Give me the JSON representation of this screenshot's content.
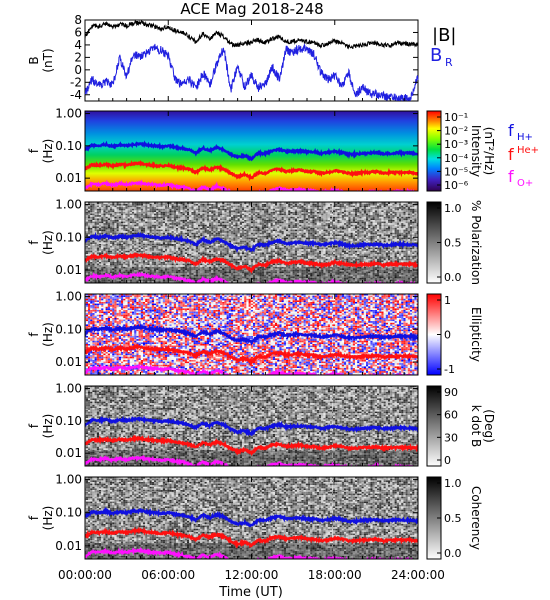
{
  "title": "ACE Mag 2018-248",
  "xlabel": "Time (UT)",
  "x_ticks": [
    "00:00:00",
    "06:00:00",
    "12:00:00",
    "18:00:00",
    "24:00:00"
  ],
  "x_range_hours": [
    0,
    24
  ],
  "colors": {
    "btot": "#000000",
    "br": "#2020e0",
    "f_h": "#1010e0",
    "f_he": "#ff1010",
    "f_o": "#ff10ff"
  },
  "chart_data": [
    {
      "type": "line",
      "panel": "B",
      "ylabel": "B",
      "yunit": "(nT)",
      "ylim": [
        -5,
        8
      ],
      "y_ticks": [
        "8",
        "6",
        "4",
        "2",
        "0",
        "-2",
        "-4"
      ],
      "y_tick_values": [
        8,
        6,
        4,
        2,
        0,
        -2,
        -4
      ],
      "legend": [
        "|B|",
        "B"
      ],
      "legend_sub": "R",
      "series": [
        {
          "key": "btot",
          "x": [
            0,
            0.5,
            1,
            1.5,
            2,
            2.5,
            3,
            3.5,
            4,
            4.5,
            5,
            5.5,
            6,
            6.5,
            7,
            7.5,
            8,
            8.5,
            9,
            9.5,
            10,
            10.5,
            11,
            11.5,
            12,
            12.5,
            13,
            13.5,
            14,
            14.5,
            15,
            15.5,
            16,
            16.5,
            17,
            17.5,
            18,
            18.5,
            19,
            19.5,
            20,
            20.5,
            21,
            21.5,
            22,
            22.5,
            23,
            23.5,
            24
          ],
          "y": [
            5.2,
            7.2,
            7.0,
            7.4,
            6.8,
            7.3,
            7.1,
            7.5,
            7.6,
            7.2,
            7.0,
            6.6,
            6.9,
            6.3,
            6.0,
            5.4,
            4.5,
            5.8,
            5.0,
            6.0,
            5.3,
            4.1,
            3.9,
            4.3,
            4.5,
            4.8,
            4.4,
            5.0,
            5.3,
            4.5,
            4.6,
            4.8,
            4.4,
            4.5,
            3.9,
            4.2,
            4.6,
            4.3,
            3.7,
            3.8,
            4.0,
            4.2,
            4.3,
            3.9,
            4.0,
            4.3,
            4.2,
            4.1,
            4.0
          ]
        },
        {
          "key": "br",
          "x": [
            0,
            0.5,
            1,
            1.5,
            2,
            2.5,
            3,
            3.5,
            4,
            4.5,
            5,
            5.5,
            6,
            6.5,
            7,
            7.5,
            8,
            8.5,
            9,
            9.5,
            10,
            10.5,
            11,
            11.5,
            12,
            12.5,
            13,
            13.5,
            14,
            14.5,
            15,
            15.5,
            16,
            16.5,
            17,
            17.5,
            18,
            18.5,
            19,
            19.5,
            20,
            20.5,
            21,
            21.5,
            22,
            22.5,
            23,
            23.5,
            24
          ],
          "y": [
            -4.0,
            -1.5,
            -2.6,
            -1.8,
            -2.5,
            2.0,
            -1.0,
            2.5,
            2.0,
            2.9,
            3.5,
            3.1,
            2.3,
            -1.5,
            -2.5,
            -1.5,
            -3.0,
            -0.5,
            -2.5,
            1.0,
            3.5,
            -3.2,
            0.5,
            -2.8,
            -1.0,
            -2.9,
            -2.2,
            0.5,
            -1.5,
            3.2,
            2.8,
            3.5,
            3.3,
            2.5,
            -0.5,
            -1.5,
            -1.0,
            -2.5,
            -0.5,
            -4.0,
            -2.8,
            -3.8,
            -3.9,
            -4.2,
            -4.4,
            -4.5,
            -4.6,
            -4.5,
            -1.0
          ]
        }
      ]
    },
    {
      "type": "heatmap",
      "panel": "intensity",
      "ylabel": "f",
      "yunit": "(Hz)",
      "y_ticks": [
        "1.00",
        "0.10",
        "0.01"
      ],
      "y_tick_values": [
        1,
        0.1,
        0.01
      ],
      "ylim": [
        0.004,
        1.2
      ],
      "colorbar_label": "Intensity",
      "colorbar_unit": "(nT²/Hz)",
      "colorbar_ticks": [
        "10⁻¹",
        "10⁻²",
        "10⁻³",
        "10⁻⁴",
        "10⁻⁵",
        "10⁻⁶"
      ],
      "colorbar_range": [
        -6.3,
        -0.7
      ],
      "legend": [
        "f",
        "f",
        "f"
      ],
      "legend_sub": [
        "H+",
        "He+",
        "O+"
      ]
    },
    {
      "type": "heatmap",
      "panel": "polarization",
      "ylabel": "f",
      "yunit": "(Hz)",
      "y_ticks": [
        "1.00",
        "0.10",
        "0.01"
      ],
      "y_tick_values": [
        1,
        0.1,
        0.01
      ],
      "colorbar_label": "% Polarization",
      "colorbar_ticks": [
        "1.0",
        "0.5",
        "0.0"
      ],
      "colorbar_range": [
        0,
        1
      ]
    },
    {
      "type": "heatmap",
      "panel": "ellipticity",
      "ylabel": "f",
      "yunit": "(Hz)",
      "y_ticks": [
        "1.00",
        "0.10",
        "0.01"
      ],
      "y_tick_values": [
        1,
        0.1,
        0.01
      ],
      "colorbar_label": "Ellipticity",
      "colorbar_ticks": [
        "1",
        "0",
        "-1"
      ],
      "colorbar_range": [
        -1,
        1
      ]
    },
    {
      "type": "heatmap",
      "panel": "kdotb",
      "ylabel": "f",
      "yunit": "(Hz)",
      "y_ticks": [
        "1.00",
        "0.10",
        "0.01"
      ],
      "y_tick_values": [
        1,
        0.1,
        0.01
      ],
      "colorbar_label": "k dot B",
      "colorbar_unit": "(Deg)",
      "colorbar_ticks": [
        "90",
        "60",
        "30",
        "0"
      ],
      "colorbar_range": [
        0,
        90
      ]
    },
    {
      "type": "heatmap",
      "panel": "coherency",
      "ylabel": "f",
      "yunit": "(Hz)",
      "y_ticks": [
        "1.00",
        "0.10",
        "0.01"
      ],
      "y_tick_values": [
        1,
        0.1,
        0.01
      ],
      "colorbar_label": "Coherency",
      "colorbar_ticks": [
        "1.0",
        "0.5",
        "0.0"
      ],
      "colorbar_range": [
        0,
        1
      ]
    }
  ],
  "gyrofrequency_lines_hz": {
    "x": [
      0,
      0.5,
      1,
      1.5,
      2,
      2.5,
      3,
      3.5,
      4,
      4.5,
      5,
      5.5,
      6,
      6.5,
      7,
      7.5,
      8,
      8.5,
      9,
      9.5,
      10,
      10.5,
      11,
      11.5,
      12,
      12.5,
      13,
      13.5,
      14,
      14.5,
      15,
      15.5,
      16,
      16.5,
      17,
      17.5,
      18,
      18.5,
      19,
      19.5,
      20,
      20.5,
      21,
      21.5,
      22,
      22.5,
      23,
      23.5,
      24
    ],
    "f_h": [
      0.075,
      0.105,
      0.1,
      0.11,
      0.095,
      0.108,
      0.1,
      0.112,
      0.115,
      0.105,
      0.1,
      0.095,
      0.1,
      0.09,
      0.085,
      0.075,
      0.06,
      0.085,
      0.07,
      0.09,
      0.075,
      0.055,
      0.045,
      0.05,
      0.04,
      0.06,
      0.058,
      0.07,
      0.078,
      0.065,
      0.068,
      0.07,
      0.065,
      0.066,
      0.058,
      0.062,
      0.068,
      0.062,
      0.055,
      0.055,
      0.058,
      0.06,
      0.062,
      0.057,
      0.058,
      0.062,
      0.06,
      0.06,
      0.055
    ],
    "f_he": [
      0.019,
      0.026,
      0.025,
      0.027,
      0.024,
      0.027,
      0.025,
      0.028,
      0.029,
      0.026,
      0.025,
      0.024,
      0.025,
      0.022,
      0.021,
      0.019,
      0.015,
      0.021,
      0.018,
      0.022,
      0.019,
      0.014,
      0.011,
      0.013,
      0.01,
      0.015,
      0.014,
      0.018,
      0.019,
      0.016,
      0.017,
      0.018,
      0.016,
      0.016,
      0.014,
      0.015,
      0.017,
      0.016,
      0.014,
      0.014,
      0.015,
      0.015,
      0.016,
      0.014,
      0.015,
      0.015,
      0.015,
      0.015,
      0.014
    ],
    "f_o": [
      0.0047,
      0.0066,
      0.0063,
      0.0069,
      0.006,
      0.0068,
      0.0063,
      0.007,
      0.0072,
      0.0066,
      0.0063,
      0.006,
      0.0063,
      0.0056,
      0.0053,
      0.0047,
      0.0038,
      0.0053,
      0.0044,
      0.0056,
      0.0047,
      0.0034,
      0.0028,
      0.0031,
      0.0025,
      0.0038,
      0.0036,
      0.0044,
      0.0049,
      0.0041,
      0.0043,
      0.0044,
      0.0041,
      0.0041,
      0.0036,
      0.0039,
      0.0043,
      0.0039,
      0.0034,
      0.0034,
      0.0036,
      0.0038,
      0.0039,
      0.0036,
      0.0036,
      0.0039,
      0.0038,
      0.0038,
      0.0034
    ]
  }
}
